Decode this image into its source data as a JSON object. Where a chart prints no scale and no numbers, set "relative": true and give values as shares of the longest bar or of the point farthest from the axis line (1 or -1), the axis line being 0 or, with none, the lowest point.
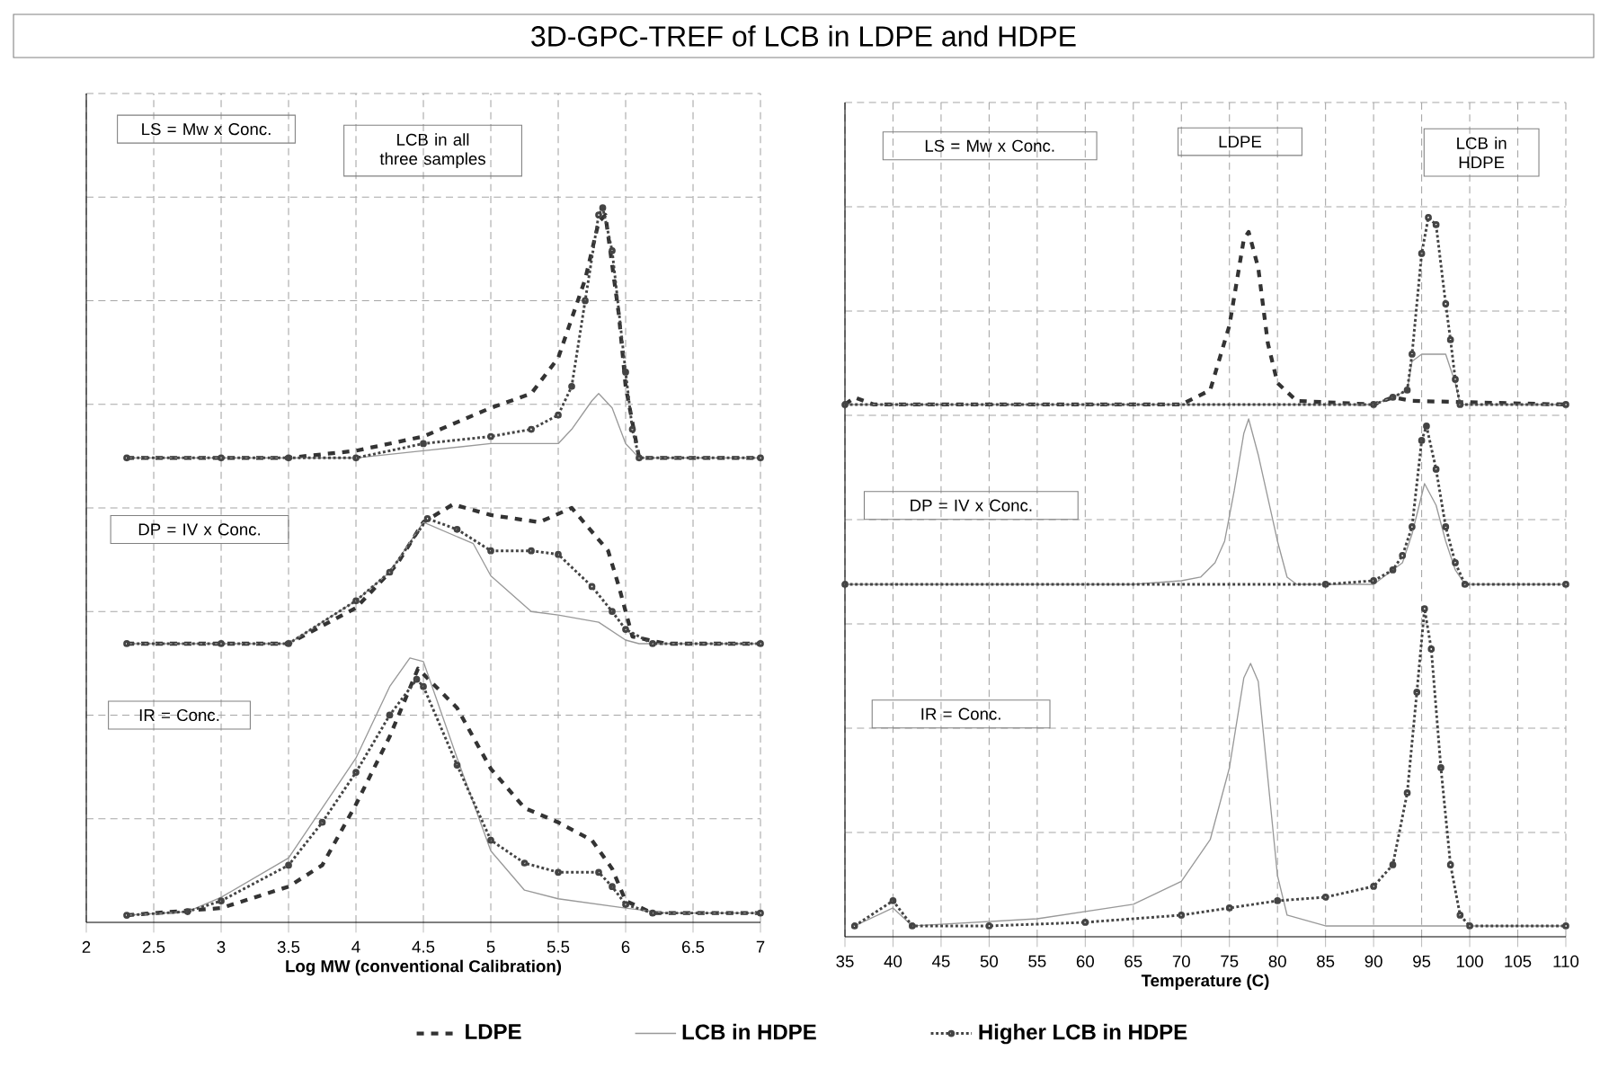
{
  "chart_data": [
    {
      "type": "line",
      "relative": true,
      "title": "3D-GPC-TREF of LCB in LDPE and HDPE",
      "xlabel": "Log MW (conventional Calibration)",
      "xlim": [
        2,
        7
      ],
      "xticks": [
        2,
        2.5,
        3,
        3.5,
        4,
        4.5,
        5,
        5.5,
        6,
        6.5,
        7
      ],
      "grid": true,
      "legend": "bottom",
      "annotations": [
        "LS = Mw x Conc.",
        "LCB in all three samples",
        "DP = IV x Conc.",
        "IR = Conc."
      ],
      "series": [
        {
          "name": "LDPE",
          "color": "#333333",
          "line_style": "dashed",
          "marker": "none",
          "x": [
            2.3,
            3.5,
            4.0,
            4.5,
            5.0,
            5.3,
            5.5,
            5.7,
            5.8,
            5.85,
            5.95,
            6.0,
            6.1,
            7.0
          ],
          "values": [
            0.65,
            0.65,
            0.66,
            0.68,
            0.72,
            0.74,
            0.79,
            0.9,
            0.98,
            0.99,
            0.85,
            0.75,
            0.65,
            0.65
          ]
        },
        {
          "name": "LCB in HDPE",
          "color": "#999999",
          "line_style": "solid",
          "marker": "none",
          "x": [
            2.3,
            4.0,
            4.5,
            5.0,
            5.5,
            5.6,
            5.75,
            5.8,
            5.9,
            6.0,
            6.1,
            7.0
          ],
          "values": [
            0.65,
            0.65,
            0.66,
            0.67,
            0.67,
            0.69,
            0.73,
            0.74,
            0.72,
            0.67,
            0.65,
            0.65
          ]
        },
        {
          "name": "Higher LCB in HDPE",
          "color": "#444444",
          "line_style": "dotted",
          "marker": "circle",
          "x": [
            2.3,
            3.0,
            3.5,
            4.0,
            4.5,
            5.0,
            5.3,
            5.5,
            5.6,
            5.7,
            5.8,
            5.83,
            5.9,
            6.0,
            6.05,
            6.1,
            7.0
          ],
          "values": [
            0.65,
            0.65,
            0.65,
            0.65,
            0.67,
            0.68,
            0.69,
            0.71,
            0.75,
            0.87,
            0.99,
            1.0,
            0.94,
            0.77,
            0.69,
            0.65,
            0.65
          ]
        },
        {
          "color": "#333333",
          "line_style": "dashed",
          "marker": "none",
          "x": [
            2.3,
            3.5,
            4.0,
            4.3,
            4.5,
            4.72,
            5.0,
            5.36,
            5.6,
            5.87,
            5.95,
            6.05,
            6.3,
            7.0
          ],
          "values": [
            0.39,
            0.39,
            0.44,
            0.5,
            0.56,
            0.585,
            0.57,
            0.56,
            0.58,
            0.52,
            0.47,
            0.4,
            0.39,
            0.39
          ]
        },
        {
          "color": "#999999",
          "line_style": "solid",
          "marker": "none",
          "x": [
            2.3,
            3.0,
            3.5,
            4.0,
            4.25,
            4.5,
            4.87,
            5.0,
            5.3,
            5.5,
            5.8,
            6.0,
            6.1,
            7.0
          ],
          "values": [
            0.39,
            0.39,
            0.39,
            0.45,
            0.49,
            0.56,
            0.53,
            0.485,
            0.435,
            0.43,
            0.42,
            0.395,
            0.39,
            0.39
          ]
        },
        {
          "color": "#444444",
          "line_style": "dotted",
          "marker": "circle",
          "x": [
            2.3,
            3.0,
            3.5,
            4.0,
            4.25,
            4.53,
            4.75,
            5.0,
            5.3,
            5.5,
            5.75,
            5.9,
            6.0,
            6.2,
            7.0
          ],
          "values": [
            0.39,
            0.39,
            0.39,
            0.45,
            0.49,
            0.565,
            0.55,
            0.52,
            0.52,
            0.515,
            0.47,
            0.435,
            0.41,
            0.39,
            0.39
          ]
        },
        {
          "color": "#333333",
          "line_style": "dashed",
          "marker": "none",
          "x": [
            2.3,
            3.0,
            3.5,
            3.75,
            4.0,
            4.25,
            4.46,
            4.75,
            5.0,
            5.25,
            5.5,
            5.75,
            5.9,
            6.0,
            6.2,
            7.0
          ],
          "values": [
            0.01,
            0.02,
            0.05,
            0.08,
            0.165,
            0.26,
            0.355,
            0.3,
            0.215,
            0.16,
            0.14,
            0.115,
            0.075,
            0.03,
            0.013,
            0.013
          ]
        },
        {
          "color": "#999999",
          "line_style": "solid",
          "marker": "none",
          "x": [
            2.3,
            2.75,
            3.0,
            3.5,
            4.0,
            4.25,
            4.4,
            4.5,
            4.75,
            5.0,
            5.25,
            5.5,
            6.0,
            6.3,
            7.0
          ],
          "values": [
            0.01,
            0.015,
            0.035,
            0.09,
            0.23,
            0.33,
            0.37,
            0.365,
            0.23,
            0.1,
            0.045,
            0.033,
            0.02,
            0.013,
            0.013
          ]
        },
        {
          "color": "#444444",
          "line_style": "dotted",
          "marker": "circle",
          "x": [
            2.3,
            2.75,
            3.0,
            3.5,
            3.75,
            4.0,
            4.25,
            4.45,
            4.5,
            4.75,
            5.0,
            5.25,
            5.5,
            5.8,
            5.9,
            6.0,
            6.2,
            7.0
          ],
          "values": [
            0.01,
            0.015,
            0.03,
            0.08,
            0.14,
            0.21,
            0.29,
            0.34,
            0.33,
            0.22,
            0.115,
            0.083,
            0.07,
            0.07,
            0.05,
            0.025,
            0.013,
            0.013
          ]
        }
      ]
    },
    {
      "type": "line",
      "relative": true,
      "xlabel": "Temperature (C)",
      "xlim": [
        35,
        110
      ],
      "xticks": [
        35,
        40,
        45,
        50,
        55,
        60,
        65,
        70,
        75,
        80,
        85,
        90,
        95,
        100,
        105,
        110
      ],
      "grid": true,
      "annotations": [
        "LS = Mw x Conc.",
        "LDPE",
        "LCB in HDPE",
        "DP = IV x Conc.",
        "IR = Conc."
      ],
      "series": [
        {
          "color": "#333333",
          "line_style": "dashed",
          "marker": "none",
          "x": [
            35,
            36,
            38,
            70,
            73,
            75,
            76.5,
            77,
            78,
            79,
            80,
            82,
            90,
            92,
            94,
            110
          ],
          "values": [
            0.74,
            0.75,
            0.74,
            0.74,
            0.76,
            0.85,
            0.97,
            0.98,
            0.93,
            0.825,
            0.77,
            0.745,
            0.74,
            0.75,
            0.745,
            0.74
          ]
        },
        {
          "color": "#999999",
          "line_style": "solid",
          "marker": "none",
          "x": [
            35,
            90,
            92,
            93.5,
            94,
            95,
            96.5,
            97.5,
            98.5,
            99,
            110
          ],
          "values": [
            0.74,
            0.74,
            0.75,
            0.76,
            0.8,
            0.81,
            0.81,
            0.81,
            0.77,
            0.74,
            0.74
          ]
        },
        {
          "color": "#444444",
          "line_style": "dotted",
          "marker": "circle",
          "x": [
            35,
            90,
            92,
            93.5,
            94,
            95,
            95.7,
            96.5,
            97.5,
            98,
            98.5,
            99,
            110
          ],
          "values": [
            0.74,
            0.74,
            0.75,
            0.76,
            0.81,
            0.95,
            1.0,
            0.99,
            0.88,
            0.83,
            0.775,
            0.74,
            0.74
          ]
        },
        {
          "color": "#999999",
          "line_style": "solid",
          "marker": "none",
          "x": [
            35,
            65,
            70,
            72,
            73.5,
            74.5,
            75.5,
            76.5,
            77,
            78,
            79,
            80,
            81,
            82,
            90,
            93,
            94,
            95.3,
            96.5,
            97.5,
            98.5,
            99.5,
            110
          ],
          "values": [
            0.49,
            0.49,
            0.495,
            0.5,
            0.52,
            0.55,
            0.62,
            0.7,
            0.72,
            0.67,
            0.61,
            0.55,
            0.5,
            0.49,
            0.49,
            0.52,
            0.56,
            0.63,
            0.6,
            0.55,
            0.51,
            0.49,
            0.49
          ]
        },
        {
          "color": "#444444",
          "line_style": "dotted",
          "marker": "circle",
          "x": [
            35,
            85,
            90,
            92,
            93,
            94,
            95,
            95.5,
            96.5,
            97.5,
            98.5,
            99.5,
            110
          ],
          "values": [
            0.49,
            0.49,
            0.495,
            0.51,
            0.53,
            0.57,
            0.69,
            0.71,
            0.65,
            0.57,
            0.52,
            0.49,
            0.49
          ]
        },
        {
          "color": "#999999",
          "line_style": "solid",
          "marker": "none",
          "x": [
            36,
            40,
            42,
            55,
            65,
            70,
            73,
            75,
            76.5,
            77.2,
            78,
            79,
            80,
            81,
            85,
            110
          ],
          "values": [
            0.015,
            0.04,
            0.015,
            0.025,
            0.045,
            0.077,
            0.135,
            0.235,
            0.36,
            0.38,
            0.355,
            0.22,
            0.085,
            0.03,
            0.015,
            0.015
          ]
        },
        {
          "color": "#444444",
          "line_style": "dotted",
          "marker": "circle",
          "x": [
            36,
            40,
            42,
            50,
            60,
            70,
            75,
            80,
            85,
            90,
            92,
            93.5,
            94.5,
            95.3,
            96,
            97,
            98,
            99,
            100,
            110
          ],
          "values": [
            0.015,
            0.05,
            0.015,
            0.015,
            0.02,
            0.03,
            0.04,
            0.05,
            0.055,
            0.07,
            0.1,
            0.2,
            0.34,
            0.456,
            0.4,
            0.235,
            0.1,
            0.03,
            0.015,
            0.015
          ]
        }
      ]
    }
  ]
}
